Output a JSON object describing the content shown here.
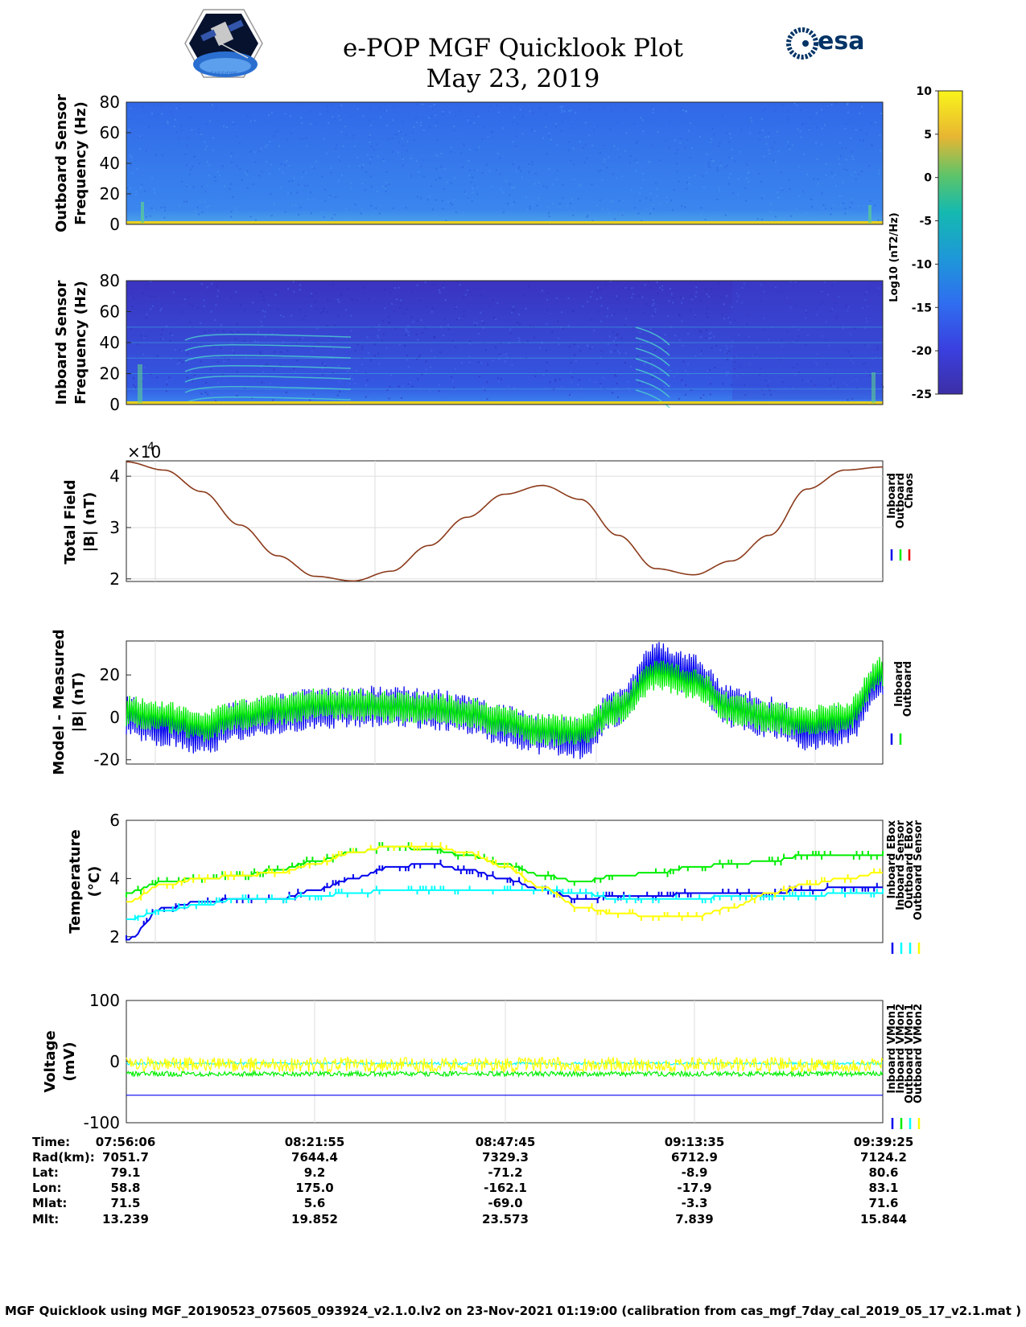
{
  "header": {
    "title_line1": "e-POP MGF Quicklook Plot",
    "title_line2": "May 23, 2019",
    "logo_left_name": "CASSIOPE",
    "logo_right_name": "esa"
  },
  "colors": {
    "inboard": "#0000ee",
    "outboard": "#00ee00",
    "chaos": "#ee0000",
    "inboard_sensor": "#00ffff",
    "outboard_sensor": "#ffff00",
    "total_field_trace": "#8b3a1a"
  },
  "chart_data": [
    {
      "type": "heatmap",
      "name": "outboard-spectrogram",
      "ylabel": [
        "Outboard Sensor",
        "Frequency (Hz)"
      ],
      "ylim": [
        0,
        80
      ],
      "yticks": [
        "80",
        "60",
        "40",
        "20",
        "0"
      ],
      "colorbar": {
        "label": "Log10 (nT2/Hz)",
        "ticks": [
          "10",
          "5",
          "0",
          "-5",
          "-10",
          "-15",
          "-20",
          "-25"
        ],
        "range": [
          -25,
          10
        ]
      }
    },
    {
      "type": "heatmap",
      "name": "inboard-spectrogram",
      "ylabel": [
        "Inboard Sensor",
        "Frequency (Hz)"
      ],
      "ylim": [
        0,
        80
      ],
      "yticks": [
        "80",
        "60",
        "40",
        "20",
        "0"
      ],
      "harmonic_lines_hz": [
        10,
        20,
        30,
        40,
        50
      ]
    },
    {
      "type": "line",
      "name": "total-field",
      "ylabel": [
        "Total Field",
        "|B| (nT)"
      ],
      "exponent_label": "×10",
      "exponent_power": "4",
      "ylim": [
        1.95,
        4.3
      ],
      "yticks": [
        "4",
        "3",
        "2"
      ],
      "x": [
        0,
        0.05,
        0.1,
        0.15,
        0.2,
        0.25,
        0.3,
        0.35,
        0.4,
        0.45,
        0.5,
        0.55,
        0.6,
        0.65,
        0.7,
        0.75,
        0.8,
        0.85,
        0.9,
        0.95,
        1.0
      ],
      "y": [
        4.28,
        4.12,
        3.7,
        3.05,
        2.45,
        2.05,
        1.96,
        2.15,
        2.65,
        3.2,
        3.65,
        3.82,
        3.55,
        2.85,
        2.2,
        2.08,
        2.35,
        2.85,
        3.75,
        4.12,
        4.18
      ],
      "legend": [
        "Inboard",
        "Outboard",
        "Chaos"
      ]
    },
    {
      "type": "line",
      "name": "model-minus-measured",
      "ylabel": [
        "Model - Measured",
        "|B| (nT)"
      ],
      "ylim": [
        -22,
        36
      ],
      "yticks": [
        "20",
        "0",
        "-20"
      ],
      "x": [
        0,
        0.05,
        0.1,
        0.15,
        0.2,
        0.25,
        0.3,
        0.35,
        0.4,
        0.45,
        0.5,
        0.55,
        0.6,
        0.65,
        0.7,
        0.75,
        0.8,
        0.85,
        0.9,
        0.95,
        1.0
      ],
      "series": [
        {
          "name": "Inboard",
          "values": [
            0,
            -4,
            -8,
            -2,
            2,
            4,
            5,
            5,
            4,
            2,
            -4,
            -8,
            -10,
            5,
            26,
            20,
            5,
            0,
            -6,
            -4,
            18
          ]
        },
        {
          "name": "Outboard",
          "values": [
            3,
            0,
            -4,
            1,
            4,
            6,
            6,
            5,
            4,
            2,
            -2,
            -6,
            -6,
            4,
            20,
            16,
            4,
            0,
            -2,
            0,
            22
          ]
        }
      ],
      "legend": [
        "Inboard",
        "Outboard"
      ]
    },
    {
      "type": "line",
      "name": "temperature",
      "ylabel": [
        "Temperature",
        "(°C)"
      ],
      "ylim": [
        1.8,
        6
      ],
      "yticks": [
        "6",
        "4",
        "2"
      ],
      "x": [
        0,
        0.05,
        0.1,
        0.15,
        0.2,
        0.25,
        0.3,
        0.35,
        0.4,
        0.45,
        0.5,
        0.55,
        0.6,
        0.65,
        0.7,
        0.75,
        0.8,
        0.85,
        0.9,
        0.95,
        1.0
      ],
      "series": [
        {
          "name": "Inboard EBox",
          "values": [
            3.5,
            3.9,
            4.0,
            4.1,
            4.3,
            4.6,
            4.9,
            5.1,
            5.0,
            4.8,
            4.5,
            4.1,
            3.9,
            4.1,
            4.2,
            4.4,
            4.5,
            4.6,
            4.8,
            4.8,
            4.8
          ]
        },
        {
          "name": "Inboard Sensor",
          "values": [
            1.9,
            3.0,
            3.2,
            3.3,
            3.3,
            3.6,
            4.0,
            4.4,
            4.5,
            4.3,
            4.0,
            3.6,
            3.3,
            3.4,
            3.4,
            3.5,
            3.5,
            3.5,
            3.6,
            3.7,
            3.7
          ]
        },
        {
          "name": "Outboard EBox",
          "values": [
            2.6,
            2.9,
            3.1,
            3.3,
            3.3,
            3.4,
            3.5,
            3.6,
            3.6,
            3.6,
            3.6,
            3.6,
            3.5,
            3.3,
            3.3,
            3.3,
            3.4,
            3.4,
            3.4,
            3.5,
            3.5
          ]
        },
        {
          "name": "Outboard Sensor",
          "values": [
            3.2,
            3.8,
            4.0,
            4.1,
            4.2,
            4.5,
            4.9,
            5.1,
            5.1,
            4.9,
            4.4,
            3.7,
            3.0,
            2.8,
            2.7,
            2.7,
            3.0,
            3.5,
            3.8,
            4.0,
            4.2
          ]
        }
      ],
      "legend": [
        "Inboard EBox",
        "Inboard Sensor",
        "Outboard EBox",
        "Outboard Sensor"
      ]
    },
    {
      "type": "line",
      "name": "voltage",
      "ylabel": [
        "Voltage",
        "(mV)"
      ],
      "ylim": [
        -100,
        100
      ],
      "yticks": [
        "100",
        "0",
        "-100"
      ],
      "series": [
        {
          "name": "Inboard VMon1",
          "values": [
            -55,
            -55
          ]
        },
        {
          "name": "Inboard VMon2",
          "values": [
            -20,
            -20
          ]
        },
        {
          "name": "Outboard VMon1",
          "values": [
            -3,
            -3
          ]
        },
        {
          "name": "Outboard VMon2",
          "values": [
            -5,
            -5
          ]
        }
      ],
      "legend": [
        "Inboard VMon1",
        "Inboard VMon2",
        "Outboard VMon1",
        "Outboard VMon2"
      ]
    }
  ],
  "ephemeris": {
    "labels": [
      "Time:",
      "Rad(km):",
      "Lat:",
      "Lon:",
      "Mlat:",
      "Mlt:"
    ],
    "columns": [
      [
        "07:56:06",
        "7051.7",
        "79.1",
        "58.8",
        "71.5",
        "13.239"
      ],
      [
        "08:21:55",
        "7644.4",
        "9.2",
        "175.0",
        "5.6",
        "19.852"
      ],
      [
        "08:47:45",
        "7329.3",
        "-71.2",
        "-162.1",
        "-69.0",
        "23.573"
      ],
      [
        "09:13:35",
        "6712.9",
        "-8.9",
        "-17.9",
        "-3.3",
        "7.839"
      ],
      [
        "09:39:25",
        "7124.2",
        "80.6",
        "83.1",
        "71.6",
        "15.844"
      ]
    ]
  },
  "footer": "MGF Quicklook using MGF_20190523_075605_093924_v2.1.0.lv2 on 23-Nov-2021 01:19:00 (calibration from cas_mgf_7day_cal_2019_05_17_v2.1.mat )"
}
